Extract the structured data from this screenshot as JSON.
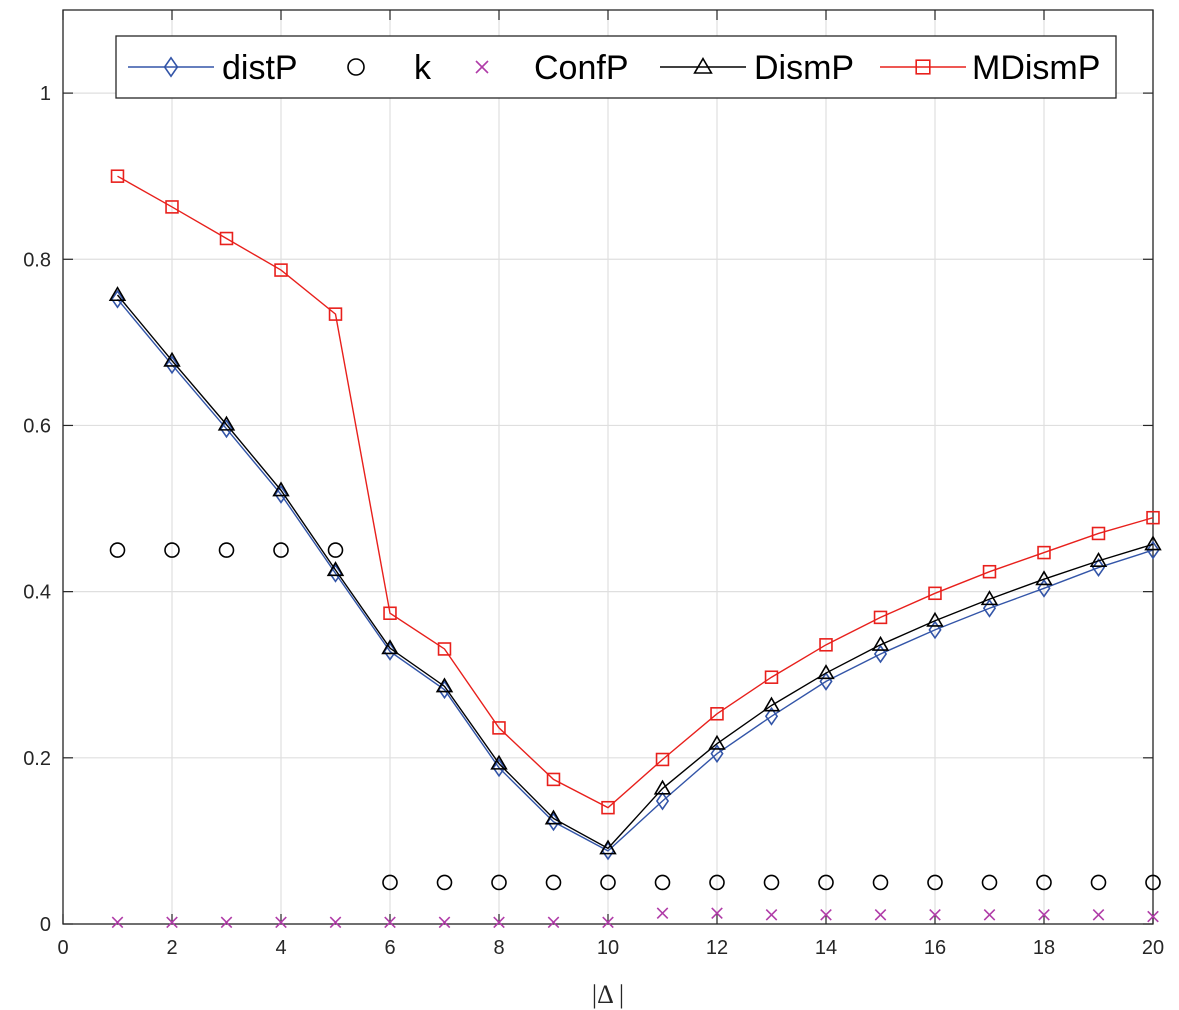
{
  "chart_data": {
    "type": "line",
    "xlabel": "|Δ |",
    "ylabel": "",
    "title": "",
    "xlim": [
      0,
      20
    ],
    "ylim": [
      0,
      1.1
    ],
    "xticks": [
      0,
      2,
      4,
      6,
      8,
      10,
      12,
      14,
      16,
      18,
      20
    ],
    "xtick_labels": [
      "0",
      "2",
      "4",
      "6",
      "8",
      "10",
      "12",
      "14",
      "16",
      "18",
      "20"
    ],
    "yticks": [
      0,
      0.2,
      0.4,
      0.6,
      0.8,
      1.0
    ],
    "ytick_labels": [
      "0",
      "0.2",
      "0.4",
      "0.6",
      "0.8",
      "1"
    ],
    "grid": true,
    "legend_position": "top, horizontal",
    "x": [
      1,
      2,
      3,
      4,
      5,
      6,
      7,
      8,
      9,
      10,
      11,
      12,
      13,
      14,
      15,
      16,
      17,
      18,
      19,
      20
    ],
    "series": [
      {
        "name": "distP",
        "color": "#3355a8",
        "marker": "diamond",
        "line": true,
        "values": [
          0.752,
          0.673,
          0.596,
          0.517,
          0.422,
          0.328,
          0.282,
          0.188,
          0.123,
          0.088,
          0.148,
          0.205,
          0.25,
          0.292,
          0.325,
          0.354,
          0.38,
          0.404,
          0.429,
          0.45
        ]
      },
      {
        "name": "k",
        "color": "#000000",
        "marker": "circle",
        "line": false,
        "values": [
          0.45,
          0.45,
          0.45,
          0.45,
          0.45,
          0.05,
          0.05,
          0.05,
          0.05,
          0.05,
          0.05,
          0.05,
          0.05,
          0.05,
          0.05,
          0.05,
          0.05,
          0.05,
          0.05,
          0.05
        ]
      },
      {
        "name": "ConfP",
        "color": "#b03ca8",
        "marker": "x",
        "line": false,
        "values": [
          0.002,
          0.002,
          0.002,
          0.002,
          0.002,
          0.002,
          0.002,
          0.002,
          0.002,
          0.002,
          0.013,
          0.013,
          0.011,
          0.011,
          0.011,
          0.011,
          0.011,
          0.011,
          0.011,
          0.009
        ]
      },
      {
        "name": "DismP",
        "color": "#000000",
        "marker": "triangle",
        "line": true,
        "values": [
          0.757,
          0.678,
          0.601,
          0.522,
          0.426,
          0.332,
          0.286,
          0.193,
          0.127,
          0.091,
          0.163,
          0.217,
          0.263,
          0.302,
          0.336,
          0.365,
          0.391,
          0.415,
          0.437,
          0.457
        ]
      },
      {
        "name": "MDismP",
        "color": "#e8201c",
        "marker": "square",
        "line": true,
        "values": [
          0.9,
          0.863,
          0.825,
          0.787,
          0.734,
          0.374,
          0.331,
          0.236,
          0.174,
          0.14,
          0.198,
          0.253,
          0.297,
          0.336,
          0.369,
          0.398,
          0.424,
          0.447,
          0.47,
          0.489
        ]
      }
    ]
  }
}
